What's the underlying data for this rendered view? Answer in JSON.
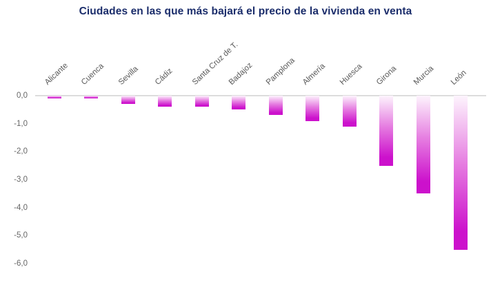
{
  "chart_data": {
    "type": "bar",
    "title": "Ciudades en las que más bajará el precio de la vivienda en venta",
    "categories": [
      "Alicante",
      "Cuenca",
      "Sevilla",
      "Cádiz",
      "Santa Cruz de T.",
      "Badajoz",
      "Pamplona",
      "Almería",
      "Huesca",
      "Girona",
      "Murcia",
      "León"
    ],
    "values": [
      -0.1,
      -0.1,
      -0.3,
      -0.4,
      -0.4,
      -0.5,
      -0.7,
      -0.9,
      -1.1,
      -2.5,
      -3.5,
      -5.5
    ],
    "xlabel": "",
    "ylabel": "",
    "ylim": [
      -6,
      0
    ],
    "y_ticks": [
      0,
      -1,
      -2,
      -3,
      -4,
      -5,
      -6
    ],
    "y_tick_labels": [
      "0,0",
      "-1,0",
      "-2,0",
      "-3,0",
      "-4,0",
      "-5,0",
      "-6,0"
    ],
    "grid": false,
    "legend": false,
    "bar_orientation": "vertical-negative",
    "colors": {
      "title": "#1b2d6b",
      "bar_gradient_top": "#fdf4fd",
      "bar_gradient_mid": "#e57ae0",
      "bar_gradient_bottom": "#cc11cc",
      "category_label": "#595959",
      "y_tick_label": "#666666",
      "zero_line": "#dcdcdc",
      "background": "#ffffff"
    }
  }
}
